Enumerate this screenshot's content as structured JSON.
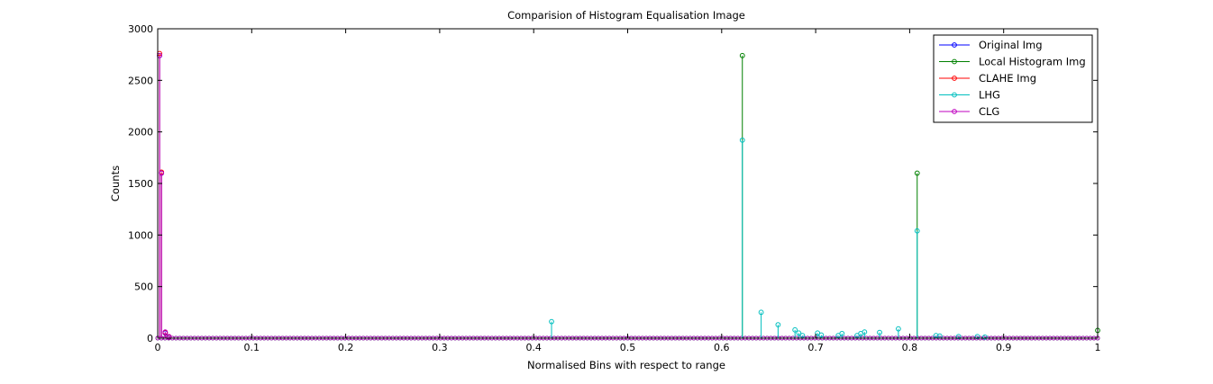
{
  "chart_data": {
    "type": "stem",
    "title": "Comparision of Histogram Equalisation Image",
    "xlabel": "Normalised Bins with respect to range",
    "ylabel": "Counts",
    "xlim": [
      0,
      1
    ],
    "ylim": [
      0,
      3000
    ],
    "xticks": [
      0,
      0.1,
      0.2,
      0.3,
      0.4,
      0.5,
      0.6,
      0.7,
      0.8,
      0.9,
      1
    ],
    "xtick_labels": [
      "0",
      "0.1",
      "0.2",
      "0.3",
      "0.4",
      "0.5",
      "0.6",
      "0.7",
      "0.8",
      "0.9",
      "1"
    ],
    "yticks": [
      0,
      500,
      1000,
      1500,
      2000,
      2500,
      3000
    ],
    "ytick_labels": [
      "0",
      "500",
      "1000",
      "1500",
      "2000",
      "2500",
      "3000"
    ],
    "grid": false,
    "legend_position": "top-right",
    "series": [
      {
        "name": "Original Img",
        "color": "#0000ff",
        "points": [
          [
            0.002,
            2740
          ],
          [
            0.004,
            1600
          ],
          [
            0.008,
            50
          ],
          [
            0.012,
            10
          ]
        ]
      },
      {
        "name": "Local Histogram Img",
        "color": "#008000",
        "points": [
          [
            0.622,
            2740
          ],
          [
            0.808,
            1600
          ],
          [
            1.0,
            75
          ]
        ]
      },
      {
        "name": "CLAHE Img",
        "color": "#ff0000",
        "points": [
          [
            0.002,
            2760
          ],
          [
            0.004,
            1610
          ],
          [
            0.008,
            55
          ],
          [
            0.012,
            12
          ]
        ]
      },
      {
        "name": "LHG",
        "color": "#00bfbf",
        "points": [
          [
            0.419,
            160
          ],
          [
            0.622,
            1920
          ],
          [
            0.642,
            250
          ],
          [
            0.66,
            130
          ],
          [
            0.678,
            80
          ],
          [
            0.682,
            50
          ],
          [
            0.686,
            25
          ],
          [
            0.702,
            50
          ],
          [
            0.706,
            30
          ],
          [
            0.724,
            25
          ],
          [
            0.728,
            45
          ],
          [
            0.744,
            25
          ],
          [
            0.748,
            45
          ],
          [
            0.752,
            60
          ],
          [
            0.768,
            55
          ],
          [
            0.788,
            90
          ],
          [
            0.808,
            1040
          ],
          [
            0.828,
            25
          ],
          [
            0.832,
            20
          ],
          [
            0.852,
            15
          ],
          [
            0.872,
            15
          ],
          [
            0.88,
            10
          ]
        ]
      },
      {
        "name": "CLG",
        "color": "#bf00bf",
        "points": [
          [
            0.002,
            2740
          ],
          [
            0.004,
            1600
          ],
          [
            0.008,
            60
          ],
          [
            0.012,
            15
          ]
        ]
      }
    ]
  }
}
